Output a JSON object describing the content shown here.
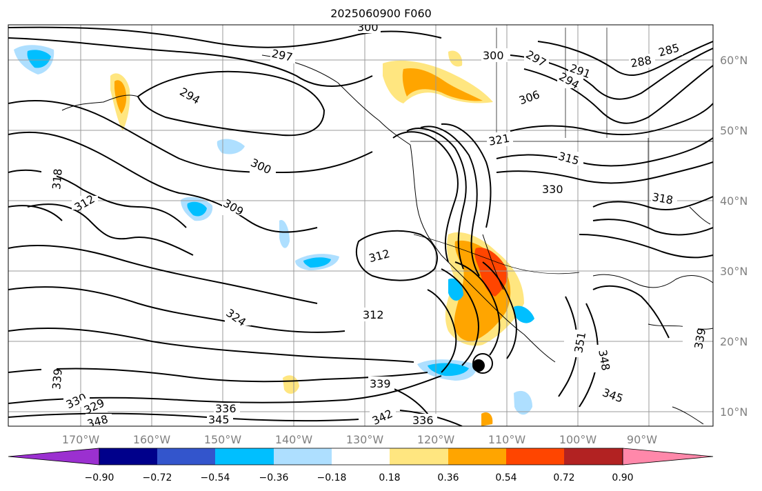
{
  "title": "2025060900 F060",
  "map": {
    "lon_labels": [
      "170°W",
      "160°W",
      "150°W",
      "140°W",
      "130°W",
      "120°W",
      "110°W",
      "100°W",
      "90°W"
    ],
    "lat_labels": [
      "60°N",
      "50°N",
      "40°N",
      "30°N",
      "20°N",
      "10°N"
    ],
    "contour_labels": [
      "300",
      "297",
      "297",
      "300",
      "291",
      "294",
      "288",
      "285",
      "306",
      "294",
      "300",
      "309",
      "312",
      "318",
      "312",
      "312",
      "321",
      "315",
      "318",
      "330",
      "324",
      "339",
      "351",
      "348",
      "345",
      "342",
      "336",
      "330",
      "329",
      "345",
      "336",
      "348",
      "339",
      "339"
    ]
  },
  "colorbar": {
    "ticks": [
      "−0.90",
      "−0.72",
      "−0.54",
      "−0.36",
      "−0.18",
      "0.18",
      "0.36",
      "0.54",
      "0.72",
      "0.90"
    ],
    "colors": [
      "#9b30d0",
      "#00008b",
      "#3355cc",
      "#00bfff",
      "#aedfff",
      "#ffffff",
      "#ffe680",
      "#ffa500",
      "#ff4500",
      "#b22222",
      "#ff88aa"
    ]
  }
}
